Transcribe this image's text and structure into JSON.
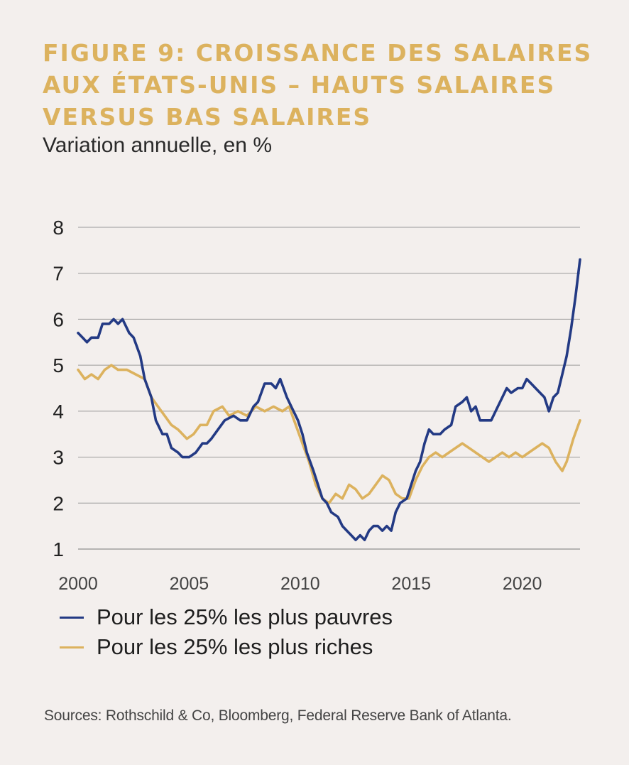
{
  "header": {
    "title_lines": [
      "FIGURE 9: CROISSANCE DES SALAIRES",
      "AUX ÉTATS-UNIS – HAUTS SALAIRES",
      "VERSUS BAS SALAIRES"
    ],
    "subtitle": "Variation annuelle, en %"
  },
  "source": "Sources: Rothschild & Co, Bloomberg, Federal Reserve Bank of Atlanta.",
  "chart_data": {
    "type": "line",
    "title": "FIGURE 9: CROISSANCE DES SALAIRES AUX ÉTATS-UNIS – HAUTS SALAIRES VERSUS BAS SALAIRES",
    "subtitle": "Variation annuelle, en %",
    "xlabel": "",
    "ylabel": "",
    "xlim": [
      2000,
      2022.6
    ],
    "ylim": [
      1,
      8
    ],
    "xticks": [
      2000,
      2005,
      2010,
      2015,
      2020
    ],
    "yticks": [
      1,
      2,
      3,
      4,
      5,
      6,
      7,
      8
    ],
    "grid": "horizontal",
    "legend": "bottom",
    "series": [
      {
        "name": "Pour les 25% les plus pauvres",
        "color": "#233a84",
        "points": [
          [
            2000.0,
            5.7
          ],
          [
            2000.2,
            5.6
          ],
          [
            2000.4,
            5.5
          ],
          [
            2000.6,
            5.6
          ],
          [
            2000.9,
            5.6
          ],
          [
            2001.1,
            5.9
          ],
          [
            2001.4,
            5.9
          ],
          [
            2001.6,
            6.0
          ],
          [
            2001.8,
            5.9
          ],
          [
            2002.0,
            6.0
          ],
          [
            2002.3,
            5.7
          ],
          [
            2002.5,
            5.6
          ],
          [
            2002.8,
            5.2
          ],
          [
            2003.0,
            4.7
          ],
          [
            2003.3,
            4.3
          ],
          [
            2003.5,
            3.8
          ],
          [
            2003.8,
            3.5
          ],
          [
            2004.0,
            3.5
          ],
          [
            2004.2,
            3.2
          ],
          [
            2004.5,
            3.1
          ],
          [
            2004.7,
            3.0
          ],
          [
            2005.0,
            3.0
          ],
          [
            2005.3,
            3.1
          ],
          [
            2005.6,
            3.3
          ],
          [
            2005.8,
            3.3
          ],
          [
            2006.0,
            3.4
          ],
          [
            2006.3,
            3.6
          ],
          [
            2006.6,
            3.8
          ],
          [
            2007.0,
            3.9
          ],
          [
            2007.3,
            3.8
          ],
          [
            2007.6,
            3.8
          ],
          [
            2007.9,
            4.1
          ],
          [
            2008.1,
            4.2
          ],
          [
            2008.4,
            4.6
          ],
          [
            2008.7,
            4.6
          ],
          [
            2008.9,
            4.5
          ],
          [
            2009.1,
            4.7
          ],
          [
            2009.4,
            4.3
          ],
          [
            2009.6,
            4.1
          ],
          [
            2009.9,
            3.8
          ],
          [
            2010.1,
            3.5
          ],
          [
            2010.3,
            3.1
          ],
          [
            2010.6,
            2.7
          ],
          [
            2010.8,
            2.4
          ],
          [
            2011.0,
            2.1
          ],
          [
            2011.2,
            2.0
          ],
          [
            2011.4,
            1.8
          ],
          [
            2011.7,
            1.7
          ],
          [
            2011.9,
            1.5
          ],
          [
            2012.1,
            1.4
          ],
          [
            2012.3,
            1.3
          ],
          [
            2012.5,
            1.2
          ],
          [
            2012.7,
            1.3
          ],
          [
            2012.9,
            1.2
          ],
          [
            2013.1,
            1.4
          ],
          [
            2013.3,
            1.5
          ],
          [
            2013.5,
            1.5
          ],
          [
            2013.7,
            1.4
          ],
          [
            2013.9,
            1.5
          ],
          [
            2014.1,
            1.4
          ],
          [
            2014.3,
            1.8
          ],
          [
            2014.5,
            2.0
          ],
          [
            2014.8,
            2.1
          ],
          [
            2015.0,
            2.4
          ],
          [
            2015.2,
            2.7
          ],
          [
            2015.4,
            2.9
          ],
          [
            2015.6,
            3.3
          ],
          [
            2015.8,
            3.6
          ],
          [
            2016.0,
            3.5
          ],
          [
            2016.3,
            3.5
          ],
          [
            2016.5,
            3.6
          ],
          [
            2016.8,
            3.7
          ],
          [
            2017.0,
            4.1
          ],
          [
            2017.3,
            4.2
          ],
          [
            2017.5,
            4.3
          ],
          [
            2017.7,
            4.0
          ],
          [
            2017.9,
            4.1
          ],
          [
            2018.1,
            3.8
          ],
          [
            2018.3,
            3.8
          ],
          [
            2018.6,
            3.8
          ],
          [
            2018.8,
            4.0
          ],
          [
            2019.0,
            4.2
          ],
          [
            2019.3,
            4.5
          ],
          [
            2019.5,
            4.4
          ],
          [
            2019.8,
            4.5
          ],
          [
            2020.0,
            4.5
          ],
          [
            2020.2,
            4.7
          ],
          [
            2020.4,
            4.6
          ],
          [
            2020.6,
            4.5
          ],
          [
            2020.8,
            4.4
          ],
          [
            2021.0,
            4.3
          ],
          [
            2021.2,
            4.0
          ],
          [
            2021.4,
            4.3
          ],
          [
            2021.6,
            4.4
          ],
          [
            2021.8,
            4.8
          ],
          [
            2022.0,
            5.2
          ],
          [
            2022.2,
            5.8
          ],
          [
            2022.4,
            6.5
          ],
          [
            2022.6,
            7.3
          ]
        ]
      },
      {
        "name": "Pour les 25% les plus riches",
        "color": "#dcb25e",
        "points": [
          [
            2000.0,
            4.9
          ],
          [
            2000.3,
            4.7
          ],
          [
            2000.6,
            4.8
          ],
          [
            2000.9,
            4.7
          ],
          [
            2001.2,
            4.9
          ],
          [
            2001.5,
            5.0
          ],
          [
            2001.8,
            4.9
          ],
          [
            2002.2,
            4.9
          ],
          [
            2002.6,
            4.8
          ],
          [
            2003.0,
            4.7
          ],
          [
            2003.3,
            4.3
          ],
          [
            2003.6,
            4.1
          ],
          [
            2003.9,
            3.9
          ],
          [
            2004.2,
            3.7
          ],
          [
            2004.5,
            3.6
          ],
          [
            2004.9,
            3.4
          ],
          [
            2005.2,
            3.5
          ],
          [
            2005.5,
            3.7
          ],
          [
            2005.8,
            3.7
          ],
          [
            2006.1,
            4.0
          ],
          [
            2006.5,
            4.1
          ],
          [
            2006.8,
            3.9
          ],
          [
            2007.2,
            4.0
          ],
          [
            2007.6,
            3.9
          ],
          [
            2008.0,
            4.1
          ],
          [
            2008.4,
            4.0
          ],
          [
            2008.8,
            4.1
          ],
          [
            2009.2,
            4.0
          ],
          [
            2009.5,
            4.1
          ],
          [
            2009.8,
            3.7
          ],
          [
            2010.1,
            3.3
          ],
          [
            2010.4,
            2.9
          ],
          [
            2010.7,
            2.4
          ],
          [
            2011.0,
            2.1
          ],
          [
            2011.3,
            2.0
          ],
          [
            2011.6,
            2.2
          ],
          [
            2011.9,
            2.1
          ],
          [
            2012.2,
            2.4
          ],
          [
            2012.5,
            2.3
          ],
          [
            2012.8,
            2.1
          ],
          [
            2013.1,
            2.2
          ],
          [
            2013.4,
            2.4
          ],
          [
            2013.7,
            2.6
          ],
          [
            2014.0,
            2.5
          ],
          [
            2014.3,
            2.2
          ],
          [
            2014.6,
            2.1
          ],
          [
            2014.9,
            2.1
          ],
          [
            2015.2,
            2.5
          ],
          [
            2015.5,
            2.8
          ],
          [
            2015.8,
            3.0
          ],
          [
            2016.1,
            3.1
          ],
          [
            2016.4,
            3.0
          ],
          [
            2016.7,
            3.1
          ],
          [
            2017.0,
            3.2
          ],
          [
            2017.3,
            3.3
          ],
          [
            2017.6,
            3.2
          ],
          [
            2017.9,
            3.1
          ],
          [
            2018.2,
            3.0
          ],
          [
            2018.5,
            2.9
          ],
          [
            2018.8,
            3.0
          ],
          [
            2019.1,
            3.1
          ],
          [
            2019.4,
            3.0
          ],
          [
            2019.7,
            3.1
          ],
          [
            2020.0,
            3.0
          ],
          [
            2020.3,
            3.1
          ],
          [
            2020.6,
            3.2
          ],
          [
            2020.9,
            3.3
          ],
          [
            2021.2,
            3.2
          ],
          [
            2021.5,
            2.9
          ],
          [
            2021.8,
            2.7
          ],
          [
            2022.0,
            2.9
          ],
          [
            2022.3,
            3.4
          ],
          [
            2022.6,
            3.8
          ]
        ]
      }
    ]
  }
}
